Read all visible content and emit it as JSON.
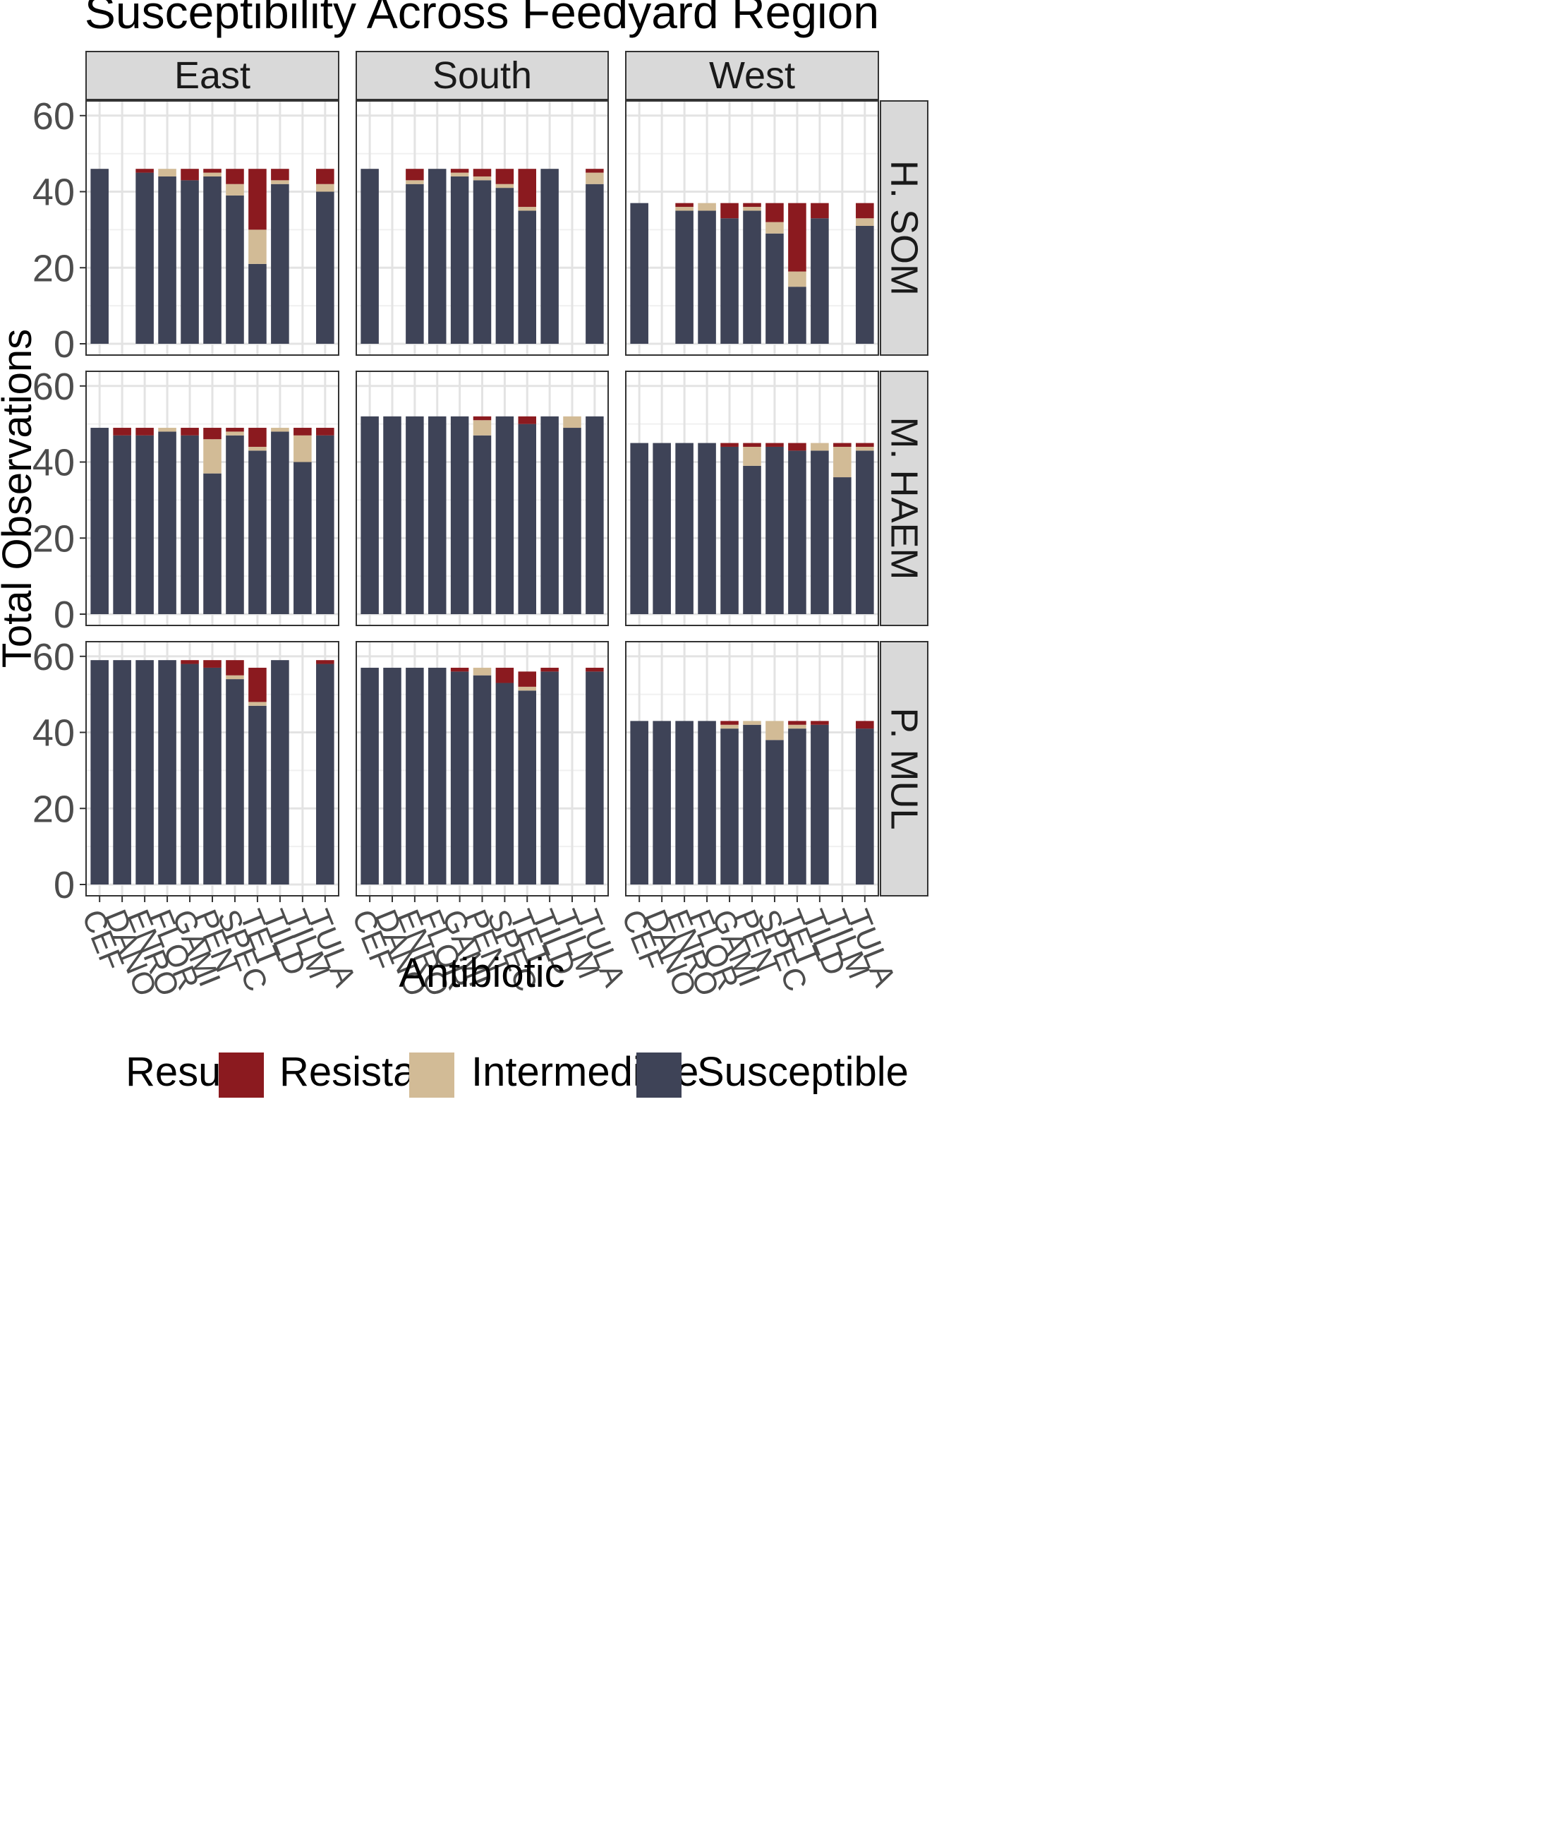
{
  "chart_data": {
    "type": "bar",
    "stacked": true,
    "title": "Susceptibility Across Feedyard Region",
    "xlabel": "Antibiotic",
    "ylabel": "Total Observations",
    "ylim": [
      0,
      62
    ],
    "yticks": [
      0,
      20,
      40,
      60
    ],
    "categories": [
      "CEF",
      "DANO",
      "ENRO",
      "FLOR",
      "GAMI",
      "PEN",
      "SPEC",
      "TET",
      "TILD",
      "TILM",
      "TULA"
    ],
    "columns": [
      "East",
      "South",
      "West"
    ],
    "rows": [
      "H. SOM",
      "M. HAEM",
      "P. MUL"
    ],
    "legend": {
      "title": "Result",
      "position": "bottom",
      "items": [
        {
          "name": "Resistant",
          "color": "#8b1a1f"
        },
        {
          "name": "Intermediate",
          "color": "#d2bb96"
        },
        {
          "name": "Susceptible",
          "color": "#3e4357"
        }
      ]
    },
    "panels": [
      {
        "column": "East",
        "row": "H. SOM",
        "series": [
          {
            "name": "Susceptible",
            "values": [
              46,
              0,
              45,
              44,
              43,
              44,
              39,
              21,
              42,
              0,
              40
            ]
          },
          {
            "name": "Intermediate",
            "values": [
              0,
              0,
              0,
              2,
              0,
              1,
              3,
              9,
              1,
              0,
              2
            ]
          },
          {
            "name": "Resistant",
            "values": [
              0,
              0,
              1,
              0,
              3,
              1,
              4,
              16,
              3,
              0,
              4
            ]
          }
        ]
      },
      {
        "column": "South",
        "row": "H. SOM",
        "series": [
          {
            "name": "Susceptible",
            "values": [
              46,
              0,
              42,
              46,
              44,
              43,
              41,
              35,
              46,
              0,
              42
            ]
          },
          {
            "name": "Intermediate",
            "values": [
              0,
              0,
              1,
              0,
              1,
              1,
              1,
              1,
              0,
              0,
              3
            ]
          },
          {
            "name": "Resistant",
            "values": [
              0,
              0,
              3,
              0,
              1,
              2,
              4,
              10,
              0,
              0,
              1
            ]
          }
        ]
      },
      {
        "column": "West",
        "row": "H. SOM",
        "series": [
          {
            "name": "Susceptible",
            "values": [
              37,
              0,
              35,
              35,
              33,
              35,
              29,
              15,
              33,
              0,
              31
            ]
          },
          {
            "name": "Intermediate",
            "values": [
              0,
              0,
              1,
              2,
              0,
              1,
              3,
              4,
              0,
              0,
              2
            ]
          },
          {
            "name": "Resistant",
            "values": [
              0,
              0,
              1,
              0,
              4,
              1,
              5,
              18,
              4,
              0,
              4
            ]
          }
        ]
      },
      {
        "column": "East",
        "row": "M. HAEM",
        "series": [
          {
            "name": "Susceptible",
            "values": [
              49,
              47,
              47,
              48,
              47,
              37,
              47,
              43,
              48,
              40,
              47
            ]
          },
          {
            "name": "Intermediate",
            "values": [
              0,
              0,
              0,
              1,
              0,
              9,
              1,
              1,
              1,
              7,
              0
            ]
          },
          {
            "name": "Resistant",
            "values": [
              0,
              2,
              2,
              0,
              2,
              3,
              1,
              5,
              0,
              2,
              2
            ]
          }
        ]
      },
      {
        "column": "South",
        "row": "M. HAEM",
        "series": [
          {
            "name": "Susceptible",
            "values": [
              52,
              52,
              52,
              52,
              52,
              47,
              52,
              50,
              52,
              49,
              52
            ]
          },
          {
            "name": "Intermediate",
            "values": [
              0,
              0,
              0,
              0,
              0,
              4,
              0,
              0,
              0,
              3,
              0
            ]
          },
          {
            "name": "Resistant",
            "values": [
              0,
              0,
              0,
              0,
              0,
              1,
              0,
              2,
              0,
              0,
              0
            ]
          }
        ]
      },
      {
        "column": "West",
        "row": "M. HAEM",
        "series": [
          {
            "name": "Susceptible",
            "values": [
              45,
              45,
              45,
              45,
              44,
              39,
              44,
              43,
              43,
              36,
              43
            ]
          },
          {
            "name": "Intermediate",
            "values": [
              0,
              0,
              0,
              0,
              0,
              5,
              0,
              0,
              2,
              8,
              1
            ]
          },
          {
            "name": "Resistant",
            "values": [
              0,
              0,
              0,
              0,
              1,
              1,
              1,
              2,
              0,
              1,
              1
            ]
          }
        ]
      },
      {
        "column": "East",
        "row": "P. MUL",
        "series": [
          {
            "name": "Susceptible",
            "values": [
              59,
              59,
              59,
              59,
              58,
              57,
              54,
              47,
              59,
              0,
              58
            ]
          },
          {
            "name": "Intermediate",
            "values": [
              0,
              0,
              0,
              0,
              0,
              0,
              1,
              1,
              0,
              0,
              0
            ]
          },
          {
            "name": "Resistant",
            "values": [
              0,
              0,
              0,
              0,
              1,
              2,
              4,
              9,
              0,
              0,
              1
            ]
          }
        ]
      },
      {
        "column": "South",
        "row": "P. MUL",
        "series": [
          {
            "name": "Susceptible",
            "values": [
              57,
              57,
              57,
              57,
              56,
              55,
              53,
              51,
              56,
              0,
              56
            ]
          },
          {
            "name": "Intermediate",
            "values": [
              0,
              0,
              0,
              0,
              0,
              2,
              0,
              1,
              0,
              0,
              0
            ]
          },
          {
            "name": "Resistant",
            "values": [
              0,
              0,
              0,
              0,
              1,
              0,
              4,
              4,
              1,
              0,
              1
            ]
          }
        ]
      },
      {
        "column": "West",
        "row": "P. MUL",
        "series": [
          {
            "name": "Susceptible",
            "values": [
              43,
              43,
              43,
              43,
              41,
              42,
              38,
              41,
              42,
              0,
              41
            ]
          },
          {
            "name": "Intermediate",
            "values": [
              0,
              0,
              0,
              0,
              1,
              1,
              5,
              1,
              0,
              0,
              0
            ]
          },
          {
            "name": "Resistant",
            "values": [
              0,
              0,
              0,
              0,
              1,
              0,
              0,
              1,
              1,
              0,
              2
            ]
          }
        ]
      }
    ]
  }
}
